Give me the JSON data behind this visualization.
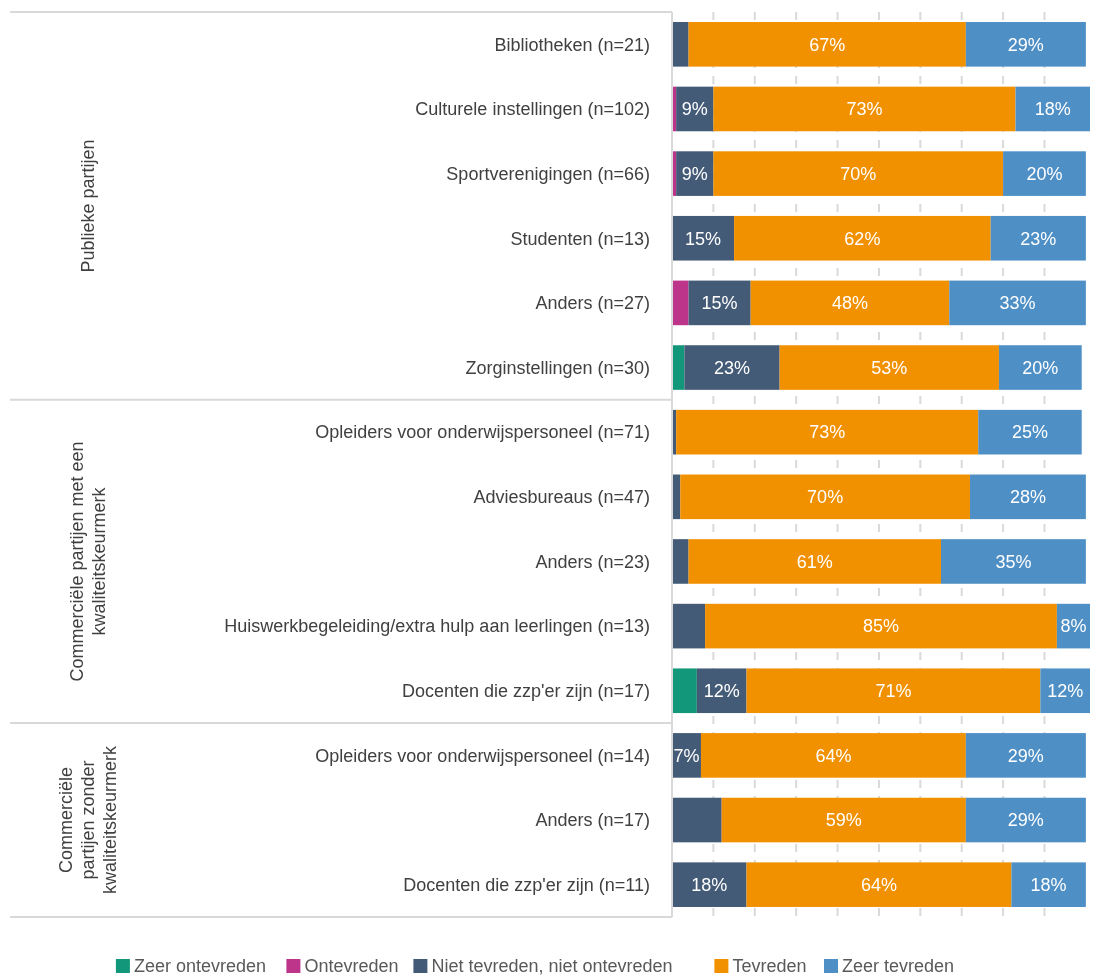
{
  "chart_data": {
    "type": "bar",
    "orientation": "horizontal",
    "stacked": true,
    "xlim": [
      0,
      101
    ],
    "xticks": [
      {
        "value": 10,
        "label": null
      },
      {
        "value": 20,
        "label": null
      },
      {
        "value": 30,
        "label": null
      },
      {
        "value": 40,
        "label": null
      },
      {
        "value": 50,
        "label": null
      },
      {
        "value": 60,
        "label": null
      },
      {
        "value": 70,
        "label": null
      },
      {
        "value": 80,
        "label": null
      },
      {
        "value": 90,
        "label": null
      }
    ],
    "tick_labels": "y",
    "grid": "x",
    "legend": "bottom",
    "categories": [
      "Bibliotheken (n=21)",
      "Culturele instellingen (n=102)",
      "Sportverenigingen (n=66)",
      "Studenten (n=13)",
      "Anders (n=27)",
      "Zorginstellingen (n=30)",
      "Opleiders voor onderwijspersoneel (n=71)",
      "Adviesbureaus (n=47)",
      "Anders (n=23)",
      "Huiswerkbegeleiding/extra hulp aan leerlingen (n=13)",
      "Docenten die zzp'er zijn (n=17)",
      "Opleiders voor onderwijspersoneel (n=14)",
      "Anders (n=17)",
      "Docenten die zzp'er zijn (n=11)"
    ],
    "series": [
      {
        "name": "Zeer ontevreden",
        "color": "#12977a",
        "values": [
          0,
          0,
          0,
          0,
          0,
          3,
          0,
          0,
          0,
          0,
          6,
          0,
          0,
          0
        ],
        "value_labels": [
          null,
          null,
          null,
          null,
          null,
          null,
          null,
          null,
          null,
          null,
          null,
          null,
          null,
          null
        ]
      },
      {
        "name": "Ontevreden",
        "color": "#bc358a",
        "values": [
          0,
          1,
          1,
          0,
          4,
          0,
          0,
          0,
          0,
          0,
          0,
          0,
          0,
          0
        ],
        "value_labels": [
          null,
          null,
          null,
          null,
          null,
          null,
          null,
          null,
          null,
          null,
          null,
          null,
          null,
          null
        ]
      },
      {
        "name": "Niet tevreden, niet ontevreden",
        "color": "#445b77",
        "values": [
          4,
          9,
          9,
          15,
          15,
          23,
          1,
          2,
          4,
          8,
          12,
          7,
          12,
          18
        ],
        "value_labels": [
          null,
          "9%",
          "9%",
          "15%",
          "15%",
          "23%",
          null,
          null,
          null,
          null,
          "12%",
          "7%",
          null,
          "18%"
        ]
      },
      {
        "name": "Tevreden",
        "color": "#f29100",
        "values": [
          67,
          73,
          70,
          62,
          48,
          53,
          73,
          70,
          61,
          85,
          71,
          64,
          59,
          64
        ],
        "value_labels": [
          "67%",
          "73%",
          "70%",
          "62%",
          "48%",
          "53%",
          "73%",
          "70%",
          "61%",
          "85%",
          "71%",
          "64%",
          "59%",
          "64%"
        ]
      },
      {
        "name": "Zeer tevreden",
        "color": "#4e8fc6",
        "values": [
          29,
          18,
          20,
          23,
          33,
          20,
          25,
          28,
          35,
          8,
          12,
          29,
          29,
          18
        ],
        "value_labels": [
          "29%",
          "18%",
          "20%",
          "23%",
          "33%",
          "20%",
          "25%",
          "28%",
          "35%",
          "8%",
          "12%",
          "29%",
          "29%",
          "18%"
        ]
      }
    ],
    "annotations": [
      "Publieke partijen",
      "Commerciële partijen met een kwaliteitskeurmerk",
      "Commerciële partijen zonder kwaliteitskeurmerk"
    ]
  }
}
